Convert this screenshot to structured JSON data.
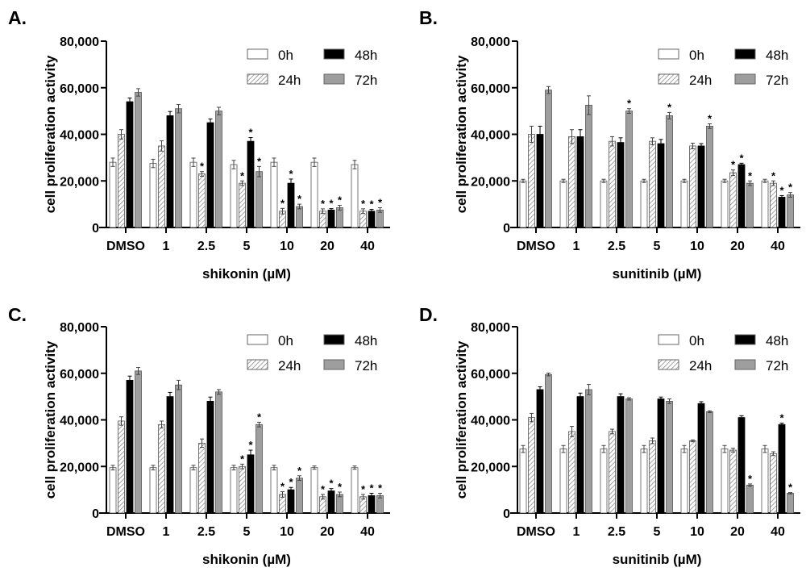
{
  "legend": [
    "0h",
    "24h",
    "48h",
    "72h"
  ],
  "colors": {
    "0h": "#ffffff",
    "24h": "hatch",
    "48h": "#000000",
    "72h": "#9e9e9e",
    "hatch_line": "#8a8a8a"
  },
  "chart_data": [
    {
      "panel": "A.",
      "type": "bar",
      "xlabel": "shikonin (µM)",
      "ylabel": "cell proliferation activity",
      "ylim": [
        0,
        80000
      ],
      "yticks": [
        "0",
        "20,000",
        "40,000",
        "60,000",
        "80,000"
      ],
      "categories": [
        "DMSO",
        "1",
        "2.5",
        "5",
        "10",
        "20",
        "40"
      ],
      "legend_position": "top-right",
      "series": [
        {
          "name": "0h",
          "values": [
            28000,
            27500,
            28000,
            27000,
            28000,
            28000,
            27000
          ],
          "err": [
            1800,
            1800,
            1800,
            1800,
            1800,
            1800,
            1800
          ],
          "significant": [
            false,
            false,
            false,
            false,
            false,
            false,
            false
          ]
        },
        {
          "name": "24h",
          "values": [
            40000,
            35000,
            23000,
            19000,
            7000,
            7000,
            7000
          ],
          "err": [
            2000,
            2200,
            1000,
            1000,
            1200,
            1000,
            1000
          ],
          "significant": [
            false,
            false,
            true,
            true,
            true,
            true,
            true
          ]
        },
        {
          "name": "48h",
          "values": [
            54000,
            48000,
            45000,
            37000,
            19000,
            7500,
            7000
          ],
          "err": [
            1600,
            1800,
            1600,
            1600,
            1800,
            600,
            800
          ],
          "significant": [
            false,
            false,
            false,
            true,
            true,
            true,
            true
          ]
        },
        {
          "name": "72h",
          "values": [
            58000,
            51000,
            50000,
            24000,
            9000,
            8500,
            7500
          ],
          "err": [
            1600,
            1800,
            1600,
            2200,
            1000,
            1000,
            1000
          ],
          "significant": [
            false,
            false,
            false,
            true,
            true,
            true,
            true
          ]
        }
      ]
    },
    {
      "panel": "B.",
      "type": "bar",
      "xlabel": "sunitinib (µM)",
      "ylabel": "cell proliferation activity",
      "ylim": [
        0,
        80000
      ],
      "yticks": [
        "0",
        "20,000",
        "40,000",
        "60,000",
        "80,000"
      ],
      "categories": [
        "DMSO",
        "1",
        "2.5",
        "5",
        "10",
        "20",
        "40"
      ],
      "legend_position": "top-right",
      "series": [
        {
          "name": "0h",
          "values": [
            20000,
            20000,
            20000,
            20000,
            20000,
            20000,
            20000
          ],
          "err": [
            700,
            700,
            700,
            700,
            700,
            700,
            700
          ],
          "significant": [
            false,
            false,
            false,
            false,
            false,
            false,
            false
          ]
        },
        {
          "name": "24h",
          "values": [
            40000,
            39000,
            37000,
            37000,
            35000,
            23500,
            19000
          ],
          "err": [
            3500,
            3000,
            2000,
            1500,
            1200,
            1200,
            1000
          ],
          "significant": [
            false,
            false,
            false,
            false,
            false,
            true,
            true
          ]
        },
        {
          "name": "48h",
          "values": [
            40000,
            39000,
            36500,
            36000,
            35000,
            27000,
            13000
          ],
          "err": [
            3500,
            3000,
            2000,
            1800,
            1000,
            600,
            700
          ],
          "significant": [
            false,
            false,
            false,
            false,
            false,
            true,
            true
          ]
        },
        {
          "name": "72h",
          "values": [
            59000,
            52500,
            50000,
            48000,
            43500,
            19000,
            14000
          ],
          "err": [
            1500,
            4000,
            1000,
            1400,
            1000,
            1000,
            1000
          ],
          "significant": [
            false,
            false,
            true,
            true,
            true,
            true,
            true
          ]
        }
      ]
    },
    {
      "panel": "C.",
      "type": "bar",
      "xlabel": "shikonin (µM)",
      "ylabel": "cell proliferation activity",
      "ylim": [
        0,
        80000
      ],
      "yticks": [
        "0",
        "20,000",
        "40,000",
        "60,000",
        "80,000"
      ],
      "categories": [
        "DMSO",
        "1",
        "2.5",
        "5",
        "10",
        "20",
        "40"
      ],
      "legend_position": "top-right",
      "series": [
        {
          "name": "0h",
          "values": [
            19500,
            19500,
            19500,
            19500,
            19500,
            19500,
            19500
          ],
          "err": [
            1000,
            1000,
            1000,
            1000,
            1000,
            700,
            700
          ],
          "significant": [
            false,
            false,
            false,
            false,
            false,
            false,
            false
          ]
        },
        {
          "name": "24h",
          "values": [
            39500,
            38000,
            30000,
            20000,
            8000,
            7000,
            7000
          ],
          "err": [
            1800,
            1500,
            1800,
            1000,
            1200,
            1000,
            1000
          ],
          "significant": [
            false,
            false,
            false,
            true,
            true,
            true,
            true
          ]
        },
        {
          "name": "48h",
          "values": [
            57000,
            50000,
            48000,
            25000,
            10000,
            9500,
            7500
          ],
          "err": [
            1800,
            1800,
            1800,
            2000,
            1000,
            1000,
            1000
          ],
          "significant": [
            false,
            false,
            false,
            true,
            true,
            true,
            true
          ]
        },
        {
          "name": "72h",
          "values": [
            61000,
            55000,
            52000,
            38000,
            15000,
            8000,
            7500
          ],
          "err": [
            1500,
            2000,
            1000,
            1000,
            1000,
            1000,
            1000
          ],
          "significant": [
            false,
            false,
            false,
            true,
            true,
            true,
            true
          ]
        }
      ]
    },
    {
      "panel": "D.",
      "type": "bar",
      "xlabel": "sunitinib (µM)",
      "ylabel": "cell proliferation activity",
      "ylim": [
        0,
        80000
      ],
      "yticks": [
        "0",
        "20,000",
        "40,000",
        "60,000",
        "80,000"
      ],
      "categories": [
        "DMSO",
        "1",
        "2.5",
        "5",
        "10",
        "20",
        "40"
      ],
      "legend_position": "top-right",
      "series": [
        {
          "name": "0h",
          "values": [
            27500,
            27500,
            27500,
            27500,
            27500,
            27500,
            27500
          ],
          "err": [
            1500,
            1500,
            1500,
            1500,
            1500,
            1500,
            1500
          ],
          "significant": [
            false,
            false,
            false,
            false,
            false,
            false,
            false
          ]
        },
        {
          "name": "24h",
          "values": [
            41000,
            35000,
            35000,
            31000,
            31000,
            27000,
            25500
          ],
          "err": [
            1800,
            2200,
            1000,
            1200,
            400,
            800,
            800
          ],
          "significant": [
            false,
            false,
            false,
            false,
            false,
            false,
            false
          ]
        },
        {
          "name": "48h",
          "values": [
            53000,
            50000,
            50000,
            49000,
            47000,
            41000,
            38000
          ],
          "err": [
            1200,
            1500,
            1200,
            800,
            800,
            800,
            600
          ],
          "significant": [
            false,
            false,
            false,
            false,
            false,
            false,
            true
          ]
        },
        {
          "name": "72h",
          "values": [
            59500,
            53000,
            49000,
            48000,
            43500,
            12000,
            8500
          ],
          "err": [
            600,
            2200,
            500,
            1000,
            400,
            500,
            300
          ],
          "significant": [
            false,
            false,
            false,
            false,
            false,
            true,
            true
          ]
        }
      ]
    }
  ]
}
